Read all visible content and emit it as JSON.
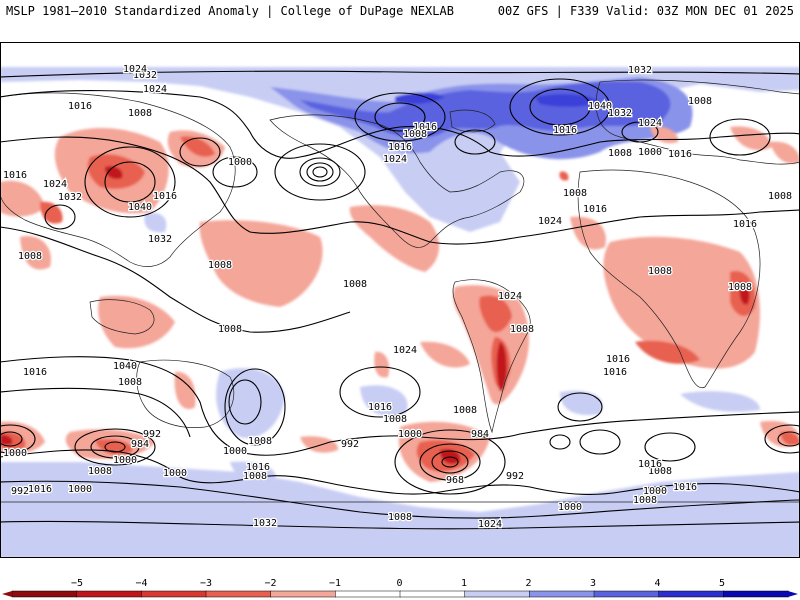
{
  "header": {
    "left": "MSLP 1981–2010 Standardized Anomaly | College of DuPage NEXLAB",
    "right": "00Z GFS | F339 Valid: 03Z MON DEC 01 2025"
  },
  "colors": {
    "red_dark": "#c0151a",
    "red_mid": "#e8604f",
    "red_light": "#f4a699",
    "blue_light": "#c8cdf4",
    "blue_mid": "#8a93ea",
    "blue_dark": "#5a62e0",
    "land_outline": "#222222",
    "isobar": "#000000"
  },
  "colorbar": {
    "ticks": [
      "−5",
      "−4",
      "−3",
      "−2",
      "−1",
      "0",
      "1",
      "2",
      "3",
      "4",
      "5"
    ],
    "segment_colors": [
      "#8e0c10",
      "#c0151a",
      "#d8382f",
      "#e8604f",
      "#f4a699",
      "#ffffff",
      "#ffffff",
      "#c8cdf4",
      "#8a93ea",
      "#5a62e0",
      "#2a2fd0",
      "#0a0ab0"
    ]
  },
  "isobar_labels": [
    "1032",
    "1024",
    "1016",
    "1008",
    "1000",
    "1016",
    "1024",
    "1032",
    "1040",
    "1032",
    "1024",
    "1016",
    "1008",
    "1016",
    "1024",
    "1032",
    "1040",
    "1032",
    "1024",
    "1016",
    "1008",
    "1000",
    "1008",
    "1016",
    "1024",
    "1008",
    "1008",
    "1016",
    "1008",
    "1008",
    "1016",
    "1008",
    "1008",
    "1016",
    "1008",
    "1016",
    "1016",
    "1024",
    "1016",
    "1008",
    "1000",
    "992",
    "984",
    "968",
    "992",
    "1008",
    "1000",
    "1000",
    "992",
    "984",
    "992",
    "1000",
    "1008",
    "1016",
    "1000",
    "1000",
    "1008",
    "1016",
    "1008",
    "1000",
    "1008",
    "1016",
    "1000",
    "1008",
    "1016",
    "1008",
    "1024",
    "1032",
    "1040",
    "1008",
    "1016",
    "1008",
    "1024",
    "1008"
  ]
}
